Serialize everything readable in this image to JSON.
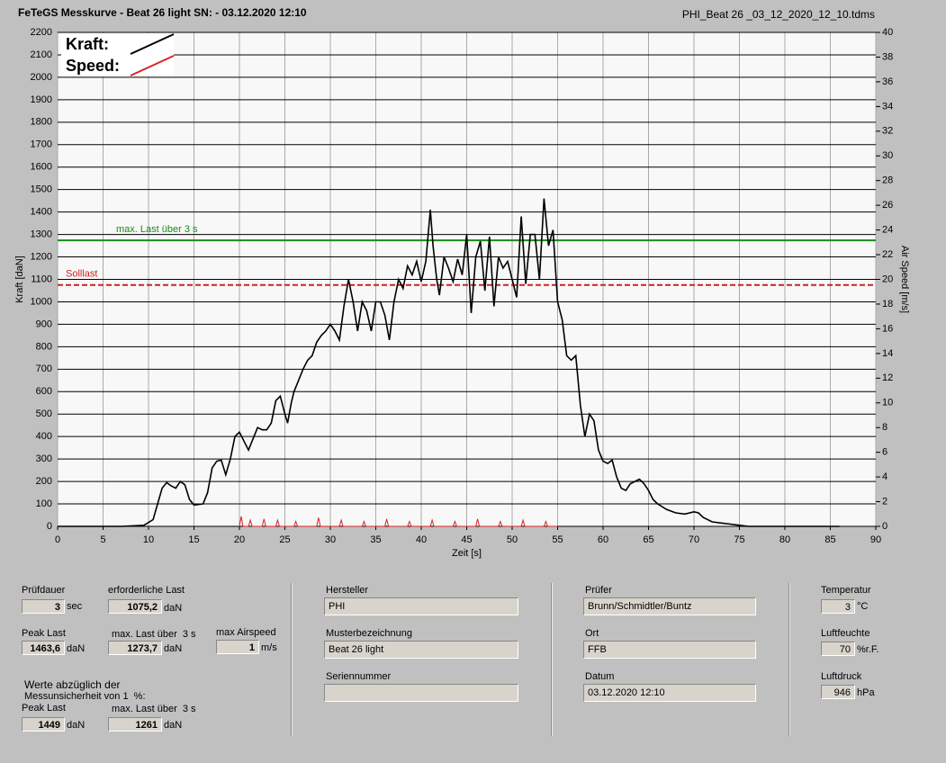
{
  "header": {
    "title": "FeTeGS Messkurve - Beat 26 light  SN:  - 03.12.2020 12:10",
    "file": "PHI_Beat 26 _03_12_2020_12_10.tdms"
  },
  "chart_data": {
    "type": "line",
    "xlabel": "Zeit [s]",
    "ylabel": "Kraft [daN]",
    "y2label": "Air Speed [m/s]",
    "xlim": [
      0,
      90
    ],
    "ylim": [
      0,
      2200
    ],
    "y2lim": [
      0,
      40
    ],
    "xticks": [
      0,
      5,
      10,
      15,
      20,
      25,
      30,
      35,
      40,
      45,
      50,
      55,
      60,
      65,
      70,
      75,
      80,
      85,
      90
    ],
    "yticks": [
      0,
      100,
      200,
      300,
      400,
      500,
      600,
      700,
      800,
      900,
      1000,
      1100,
      1200,
      1300,
      1400,
      1500,
      1600,
      1700,
      1800,
      1900,
      2000,
      2100,
      2200
    ],
    "y2ticks": [
      0,
      2,
      4,
      6,
      8,
      10,
      12,
      14,
      16,
      18,
      20,
      22,
      24,
      26,
      28,
      30,
      32,
      34,
      36,
      38,
      40
    ],
    "grid": true,
    "hlines": [
      {
        "label": "max. Last über  3 s",
        "value": 1273.7,
        "color": "#1a8a1a",
        "dashed": false
      },
      {
        "label": "Solllast",
        "value": 1075.2,
        "color": "#cc2222",
        "dashed": true
      }
    ],
    "series": [
      {
        "name": "Kraft:",
        "color": "#000000",
        "x": [
          0,
          7,
          9.5,
          10.5,
          11,
          11.5,
          12,
          12.5,
          13,
          13.5,
          14,
          14.5,
          15,
          16,
          16.5,
          17,
          17.5,
          18,
          18.5,
          19,
          19.5,
          20,
          20.5,
          21,
          21.5,
          22,
          22.5,
          23,
          23.5,
          24,
          24.5,
          25,
          25.3,
          25.7,
          26,
          26.5,
          27,
          27.5,
          28,
          28.5,
          29,
          29.5,
          30,
          30.5,
          31,
          31.5,
          32,
          32.5,
          33,
          33.5,
          34,
          34.5,
          35,
          35.5,
          36,
          36.5,
          37,
          37.5,
          38,
          38.5,
          39,
          39.5,
          40,
          40.5,
          41,
          41.3,
          41.7,
          42,
          42.5,
          43,
          43.5,
          44,
          44.5,
          45,
          45.5,
          46,
          46.5,
          47,
          47.5,
          48,
          48.5,
          49,
          49.5,
          50,
          50.5,
          51,
          51.5,
          52,
          52.5,
          53,
          53.5,
          54,
          54.5,
          55,
          55.5,
          56,
          56.5,
          57,
          57.5,
          58,
          58.5,
          59,
          59.5,
          60,
          60.5,
          61,
          61.5,
          62,
          62.5,
          63,
          63.5,
          64,
          64.5,
          65,
          65.5,
          66,
          67,
          68,
          69,
          70,
          70.5,
          71,
          72,
          73,
          74,
          75,
          76,
          86
        ],
        "values": [
          0,
          0,
          5,
          30,
          100,
          170,
          195,
          180,
          170,
          200,
          185,
          120,
          95,
          100,
          150,
          260,
          290,
          295,
          230,
          300,
          400,
          420,
          380,
          340,
          390,
          440,
          430,
          430,
          460,
          560,
          580,
          500,
          460,
          550,
          600,
          650,
          700,
          740,
          760,
          820,
          850,
          870,
          900,
          870,
          830,
          980,
          1100,
          1000,
          870,
          1000,
          960,
          870,
          1000,
          1000,
          940,
          830,
          1000,
          1100,
          1060,
          1160,
          1120,
          1180,
          1090,
          1180,
          1410,
          1250,
          1100,
          1030,
          1200,
          1150,
          1090,
          1190,
          1120,
          1300,
          950,
          1200,
          1270,
          1050,
          1290,
          980,
          1200,
          1150,
          1180,
          1100,
          1020,
          1380,
          1080,
          1300,
          1300,
          1100,
          1460,
          1250,
          1320,
          1000,
          920,
          760,
          740,
          760,
          540,
          400,
          500,
          470,
          340,
          290,
          280,
          295,
          220,
          170,
          160,
          190,
          200,
          210,
          190,
          160,
          120,
          100,
          75,
          60,
          55,
          65,
          60,
          40,
          20,
          15,
          10,
          5,
          0,
          0
        ]
      },
      {
        "name": "Speed:",
        "color": "#dd2222",
        "axis": "y2",
        "x": [
          20,
          20.2,
          20.4,
          21,
          21.2,
          21.4,
          22.5,
          22.7,
          22.9,
          24,
          24.2,
          24.4,
          26,
          26.2,
          26.4,
          28.5,
          28.7,
          28.9,
          31,
          31.2,
          31.4,
          33.5,
          33.7,
          33.9,
          36,
          36.2,
          36.4,
          38.5,
          38.7,
          38.9,
          41,
          41.2,
          41.4,
          43.5,
          43.7,
          43.9,
          46,
          46.2,
          46.4,
          48.5,
          48.7,
          48.9,
          51,
          51.2,
          51.4,
          53.5,
          53.7,
          53.9,
          55
        ],
        "values": [
          0,
          0.8,
          0,
          0,
          0.5,
          0,
          0,
          0.6,
          0,
          0,
          0.5,
          0,
          0,
          0.4,
          0,
          0,
          0.7,
          0,
          0,
          0.5,
          0,
          0,
          0.4,
          0,
          0,
          0.6,
          0,
          0,
          0.4,
          0,
          0,
          0.5,
          0,
          0,
          0.4,
          0,
          0,
          0.6,
          0,
          0,
          0.4,
          0,
          0,
          0.5,
          0,
          0,
          0.4,
          0,
          0
        ]
      }
    ]
  },
  "panel": {
    "pruefdauer": {
      "label": "Prüfdauer",
      "value": "3",
      "unit": "sec"
    },
    "erf_last": {
      "label": "erforderliche Last",
      "value": "1075,2",
      "unit": "daN"
    },
    "peak": {
      "label": "Peak Last",
      "value": "1463,6",
      "unit": "daN"
    },
    "max3": {
      "label": "max. Last über  3 s",
      "value": "1273,7",
      "unit": "daN"
    },
    "airspeed": {
      "label": "max Airspeed",
      "value": "1",
      "unit": "m/s"
    },
    "note": [
      "Werte abzüglich der",
      "Messunsicherheit von 1  %:"
    ],
    "peak_korr": {
      "label": "Peak Last",
      "value": "1449",
      "unit": "daN"
    },
    "max3_korr": {
      "label": "max. Last über  3 s",
      "value": "1261",
      "unit": "daN"
    },
    "hersteller": {
      "label": "Hersteller",
      "value": "PHI"
    },
    "muster": {
      "label": "Musterbezeichnung",
      "value": "Beat 26 light"
    },
    "serie": {
      "label": "Seriennummer"
    },
    "pruefer": {
      "label": "Prüfer",
      "value": "Brunn/Schmidtler/Buntz"
    },
    "ort": {
      "label": "Ort",
      "value": "FFB"
    },
    "datum": {
      "label": "Datum",
      "value": "03.12.2020 12:10"
    },
    "temp": {
      "label": "Temperatur",
      "value": "3",
      "unit": "°C"
    },
    "feuchte": {
      "label": "Luftfeuchte",
      "value": "70",
      "unit": "%r.F."
    },
    "druck": {
      "label": "Luftdruck",
      "value": "946",
      "unit": "hPa"
    }
  }
}
